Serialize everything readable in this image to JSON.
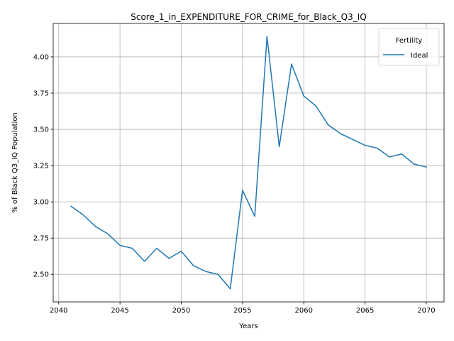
{
  "chart_data": {
    "type": "line",
    "title": "Score_1_in_EXPENDITURE_FOR_CRIME_for_Black_Q3_IQ",
    "xlabel": "Years",
    "ylabel": "% of Black Q3_IQ Population",
    "xlim": [
      2039.55,
      2071.45
    ],
    "ylim": [
      2.31,
      4.23
    ],
    "xticks": [
      2040,
      2045,
      2050,
      2055,
      2060,
      2065,
      2070
    ],
    "yticks": [
      2.5,
      2.75,
      3.0,
      3.25,
      3.5,
      3.75,
      4.0
    ],
    "grid": true,
    "legend": {
      "title": "Fertility",
      "placement": "top-right"
    },
    "series": [
      {
        "name": "Ideal",
        "color": "#1f77b4",
        "x": [
          2041,
          2042,
          2043,
          2044,
          2045,
          2046,
          2047,
          2048,
          2049,
          2050,
          2051,
          2052,
          2053,
          2054,
          2055,
          2056,
          2057,
          2058,
          2059,
          2060,
          2061,
          2062,
          2063,
          2064,
          2065,
          2066,
          2067,
          2068,
          2069,
          2070
        ],
        "values": [
          2.97,
          2.91,
          2.83,
          2.78,
          2.7,
          2.68,
          2.59,
          2.68,
          2.61,
          2.66,
          2.56,
          2.52,
          2.5,
          2.4,
          3.08,
          2.9,
          4.14,
          3.38,
          3.95,
          3.73,
          3.66,
          3.53,
          3.47,
          3.43,
          3.39,
          3.37,
          3.31,
          3.33,
          3.26,
          3.24
        ]
      }
    ]
  }
}
